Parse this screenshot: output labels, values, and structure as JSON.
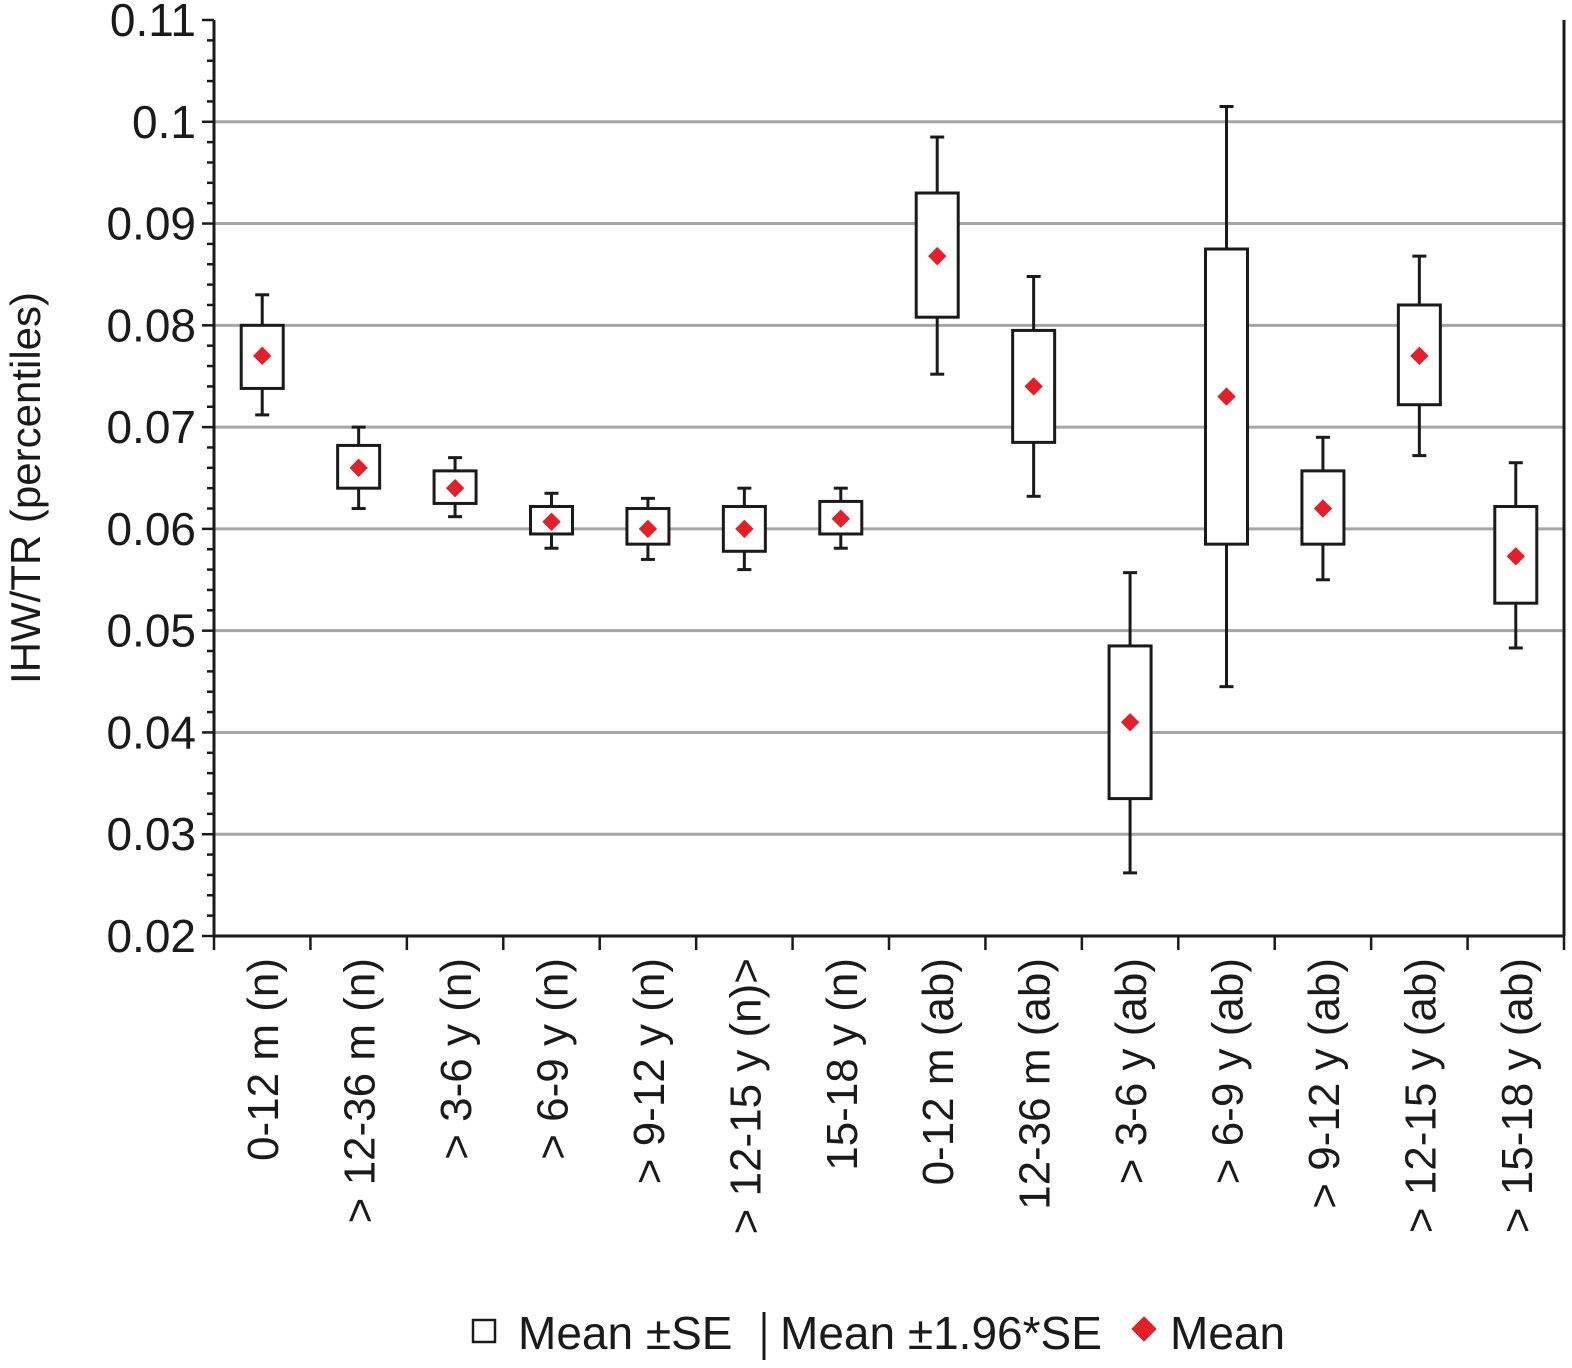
{
  "chart_data": {
    "type": "box",
    "title": "",
    "xlabel": "",
    "ylabel": "IHW/TR (percentiles)",
    "ylim": [
      0.02,
      0.11
    ],
    "yticks": [
      "0.02",
      "0.03",
      "0.04",
      "0.05",
      "0.06",
      "0.07",
      "0.08",
      "0.09",
      "0.1",
      "0.11"
    ],
    "grid": true,
    "legend_position": "bottom",
    "categories": [
      "0-12 m (n)",
      "> 12-36 m (n)",
      "> 3-6 y (n)",
      "> 6-9 y (n)",
      "> 9-12 y (n)",
      "> 12-15 y (n)>",
      "15-18 y (n)",
      "0-12 m (ab)",
      "12-36 m (ab)",
      "> 3-6 y (ab)",
      "> 6-9 y (ab)",
      "> 9-12 y (ab)",
      "> 12-15 y (ab)",
      "> 15-18 y (ab)"
    ],
    "mean": [
      0.077,
      0.066,
      0.064,
      0.0607,
      0.06,
      0.06,
      0.061,
      0.0868,
      0.074,
      0.041,
      0.073,
      0.062,
      0.077,
      0.0573
    ],
    "se_low": [
      0.0738,
      0.064,
      0.0625,
      0.0595,
      0.0585,
      0.0578,
      0.0595,
      0.0808,
      0.0685,
      0.0335,
      0.0585,
      0.0585,
      0.0722,
      0.0527
    ],
    "se_high": [
      0.08,
      0.0682,
      0.0657,
      0.0622,
      0.062,
      0.0622,
      0.0627,
      0.093,
      0.0795,
      0.0485,
      0.0875,
      0.0657,
      0.082,
      0.0622
    ],
    "ci_low": [
      0.0712,
      0.062,
      0.0612,
      0.0581,
      0.057,
      0.056,
      0.0581,
      0.0752,
      0.0632,
      0.0262,
      0.0445,
      0.055,
      0.0672,
      0.0483
    ],
    "ci_high": [
      0.083,
      0.07,
      0.067,
      0.0635,
      0.063,
      0.064,
      0.064,
      0.0985,
      0.0848,
      0.0557,
      0.1015,
      0.069,
      0.0868,
      0.0665
    ],
    "colors": {
      "mean_marker": "#e3202a",
      "box": "#1a1a1a",
      "grid": "#a6a6a6"
    }
  },
  "legend": {
    "box_label": "Mean ±SE",
    "whisker_label": "Mean ±1.96*SE",
    "mean_label": "Mean"
  }
}
